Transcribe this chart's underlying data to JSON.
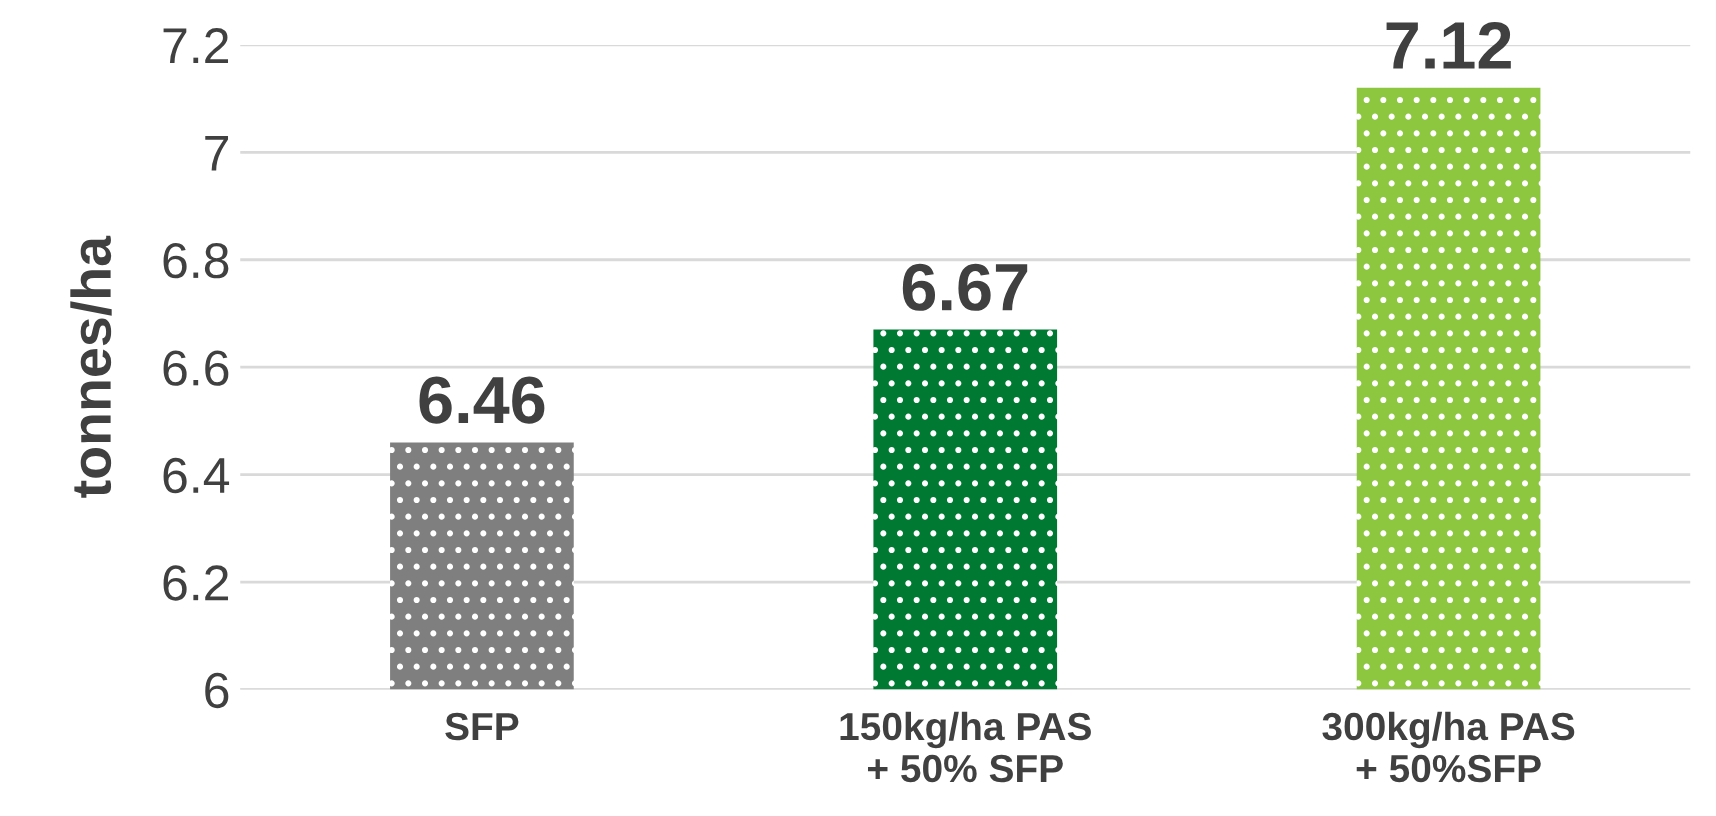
{
  "chart_data": {
    "type": "bar",
    "ylabel": "tonnes/ha",
    "categories": [
      "SFP",
      "150kg/ha PAS\n+ 50% SFP",
      "300kg/ha PAS\n+ 50%SFP"
    ],
    "values": [
      6.46,
      6.67,
      7.12
    ],
    "colors": [
      "#7f7f7f",
      "#007a33",
      "#8dc63f"
    ],
    "ylim": [
      6,
      7.2
    ],
    "yticks": [
      6,
      6.2,
      6.4,
      6.6,
      6.8,
      7,
      7.2
    ],
    "grid": "y",
    "data_labels": true,
    "legend": false
  }
}
